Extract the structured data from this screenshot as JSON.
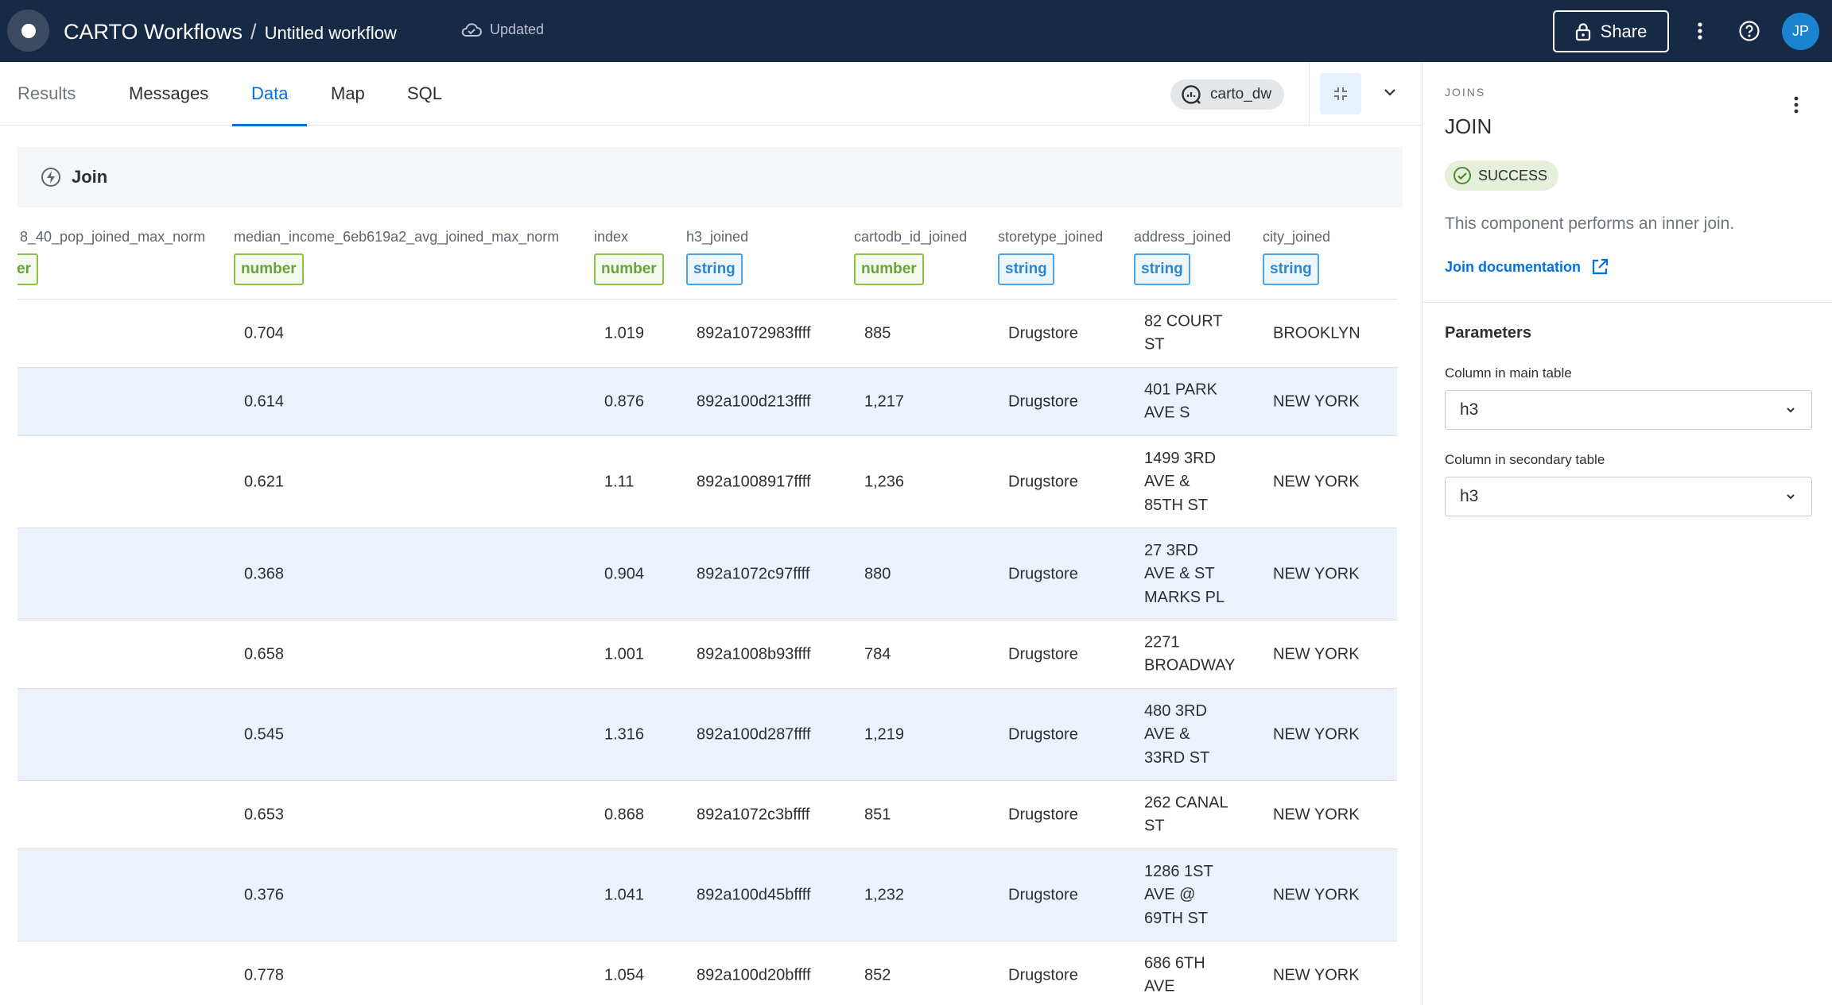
{
  "header": {
    "app_title": "CARTO Workflows",
    "separator": "/",
    "workflow_name": "Untitled workflow",
    "save_status": "Updated",
    "share_label": "Share",
    "avatar_initials": "JP"
  },
  "tabs": [
    {
      "label": "Results",
      "state": "dim"
    },
    {
      "label": "Messages",
      "state": "normal"
    },
    {
      "label": "Data",
      "state": "active"
    },
    {
      "label": "Map",
      "state": "normal"
    },
    {
      "label": "SQL",
      "state": "normal"
    }
  ],
  "connection": {
    "name": "carto_dw"
  },
  "node": {
    "title": "Join"
  },
  "table": {
    "columns": [
      {
        "name": "8_40_pop_joined_max_norm",
        "type_label": "er",
        "type": "number"
      },
      {
        "name": "median_income_6eb619a2_avg_joined_max_norm",
        "type_label": "number",
        "type": "number"
      },
      {
        "name": "index",
        "type_label": "number",
        "type": "number"
      },
      {
        "name": "h3_joined",
        "type_label": "string",
        "type": "string"
      },
      {
        "name": "cartodb_id_joined",
        "type_label": "number",
        "type": "number"
      },
      {
        "name": "storetype_joined",
        "type_label": "string",
        "type": "string"
      },
      {
        "name": "address_joined",
        "type_label": "string",
        "type": "string"
      },
      {
        "name": "city_joined",
        "type_label": "string",
        "type": "string"
      }
    ],
    "rows": [
      {
        "median": "0.704",
        "index": "1.019",
        "h3": "892a1072983ffff",
        "cartodb_id": "885",
        "storetype": "Drugstore",
        "address": "82 COURT ST",
        "city": "BROOKLYN"
      },
      {
        "median": "0.614",
        "index": "0.876",
        "h3": "892a100d213ffff",
        "cartodb_id": "1,217",
        "storetype": "Drugstore",
        "address": "401 PARK AVE S",
        "city": "NEW YORK"
      },
      {
        "median": "0.621",
        "index": "1.11",
        "h3": "892a1008917ffff",
        "cartodb_id": "1,236",
        "storetype": "Drugstore",
        "address": "1499 3RD AVE & 85TH ST",
        "city": "NEW YORK"
      },
      {
        "median": "0.368",
        "index": "0.904",
        "h3": "892a1072c97ffff",
        "cartodb_id": "880",
        "storetype": "Drugstore",
        "address": "27 3RD AVE & ST MARKS PL",
        "city": "NEW YORK"
      },
      {
        "median": "0.658",
        "index": "1.001",
        "h3": "892a1008b93ffff",
        "cartodb_id": "784",
        "storetype": "Drugstore",
        "address": "2271 BROADWAY",
        "city": "NEW YORK"
      },
      {
        "median": "0.545",
        "index": "1.316",
        "h3": "892a100d287ffff",
        "cartodb_id": "1,219",
        "storetype": "Drugstore",
        "address": "480 3RD AVE & 33RD ST",
        "city": "NEW YORK"
      },
      {
        "median": "0.653",
        "index": "0.868",
        "h3": "892a1072c3bffff",
        "cartodb_id": "851",
        "storetype": "Drugstore",
        "address": "262 CANAL ST",
        "city": "NEW YORK"
      },
      {
        "median": "0.376",
        "index": "1.041",
        "h3": "892a100d45bffff",
        "cartodb_id": "1,232",
        "storetype": "Drugstore",
        "address": "1286 1ST AVE @ 69TH ST",
        "city": "NEW YORK"
      },
      {
        "median": "0.778",
        "index": "1.054",
        "h3": "892a100d20bffff",
        "cartodb_id": "852",
        "storetype": "Drugstore",
        "address": "686 6TH AVE",
        "city": "NEW YORK"
      }
    ]
  },
  "panel": {
    "eyebrow": "JOINS",
    "title": "JOIN",
    "status": "SUCCESS",
    "description": "This component performs an inner join.",
    "doc_link": "Join documentation",
    "params_title": "Parameters",
    "main_label": "Column in main table",
    "main_value": "h3",
    "secondary_label": "Column in secondary table",
    "secondary_value": "h3"
  },
  "colors": {
    "topbar": "#162945",
    "accent": "#036fe2",
    "number_chip": "#8bc34a",
    "string_chip": "#4da3e6",
    "row_alt": "#ebf2fc",
    "success_bg": "#e6efd9"
  }
}
